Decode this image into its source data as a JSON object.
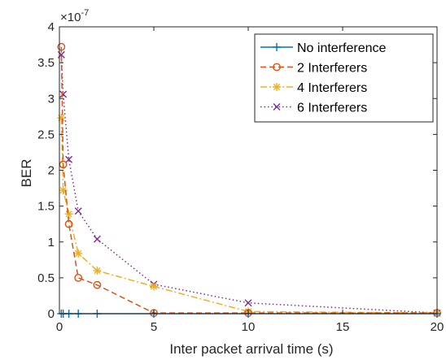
{
  "chart_data": {
    "type": "line",
    "title": "",
    "xlabel": "Inter packet arrival time (s)",
    "ylabel": "BER",
    "y_multiplier": "×10",
    "y_multiplier_exp": "-7",
    "xlim": [
      0,
      20
    ],
    "ylim": [
      0,
      4
    ],
    "y_scale_exponent": -7,
    "x_ticks": [
      0,
      5,
      10,
      15,
      20
    ],
    "x_tick_labels": [
      "0",
      "5",
      "10",
      "15",
      "20"
    ],
    "y_ticks": [
      0,
      0.5,
      1,
      1.5,
      2,
      2.5,
      3,
      3.5,
      4
    ],
    "y_tick_labels": [
      "0",
      "0.5",
      "1",
      "1.5",
      "2",
      "2.5",
      "3",
      "3.5",
      "4"
    ],
    "grid": false,
    "legend_position": "top-right",
    "series": [
      {
        "name": "No interference",
        "color": "#0072BD",
        "line": "solid",
        "marker": "plus",
        "x": [
          0.1,
          0.2,
          0.5,
          1,
          2,
          5,
          10,
          20
        ],
        "y": [
          0,
          0,
          0,
          0,
          0,
          0,
          0,
          0
        ]
      },
      {
        "name": "2 Interferers",
        "color": "#D95319",
        "line": "dashed",
        "marker": "circle",
        "x": [
          0.1,
          0.2,
          0.5,
          1,
          2,
          5,
          10,
          20
        ],
        "y": [
          3.72,
          2.08,
          1.25,
          0.5,
          0.4,
          0.01,
          0.01,
          0.01
        ]
      },
      {
        "name": "4 Interferers",
        "color": "#EDB120",
        "line": "dashdot",
        "marker": "asterisk",
        "x": [
          0.1,
          0.2,
          0.5,
          1,
          2,
          5,
          10,
          20
        ],
        "y": [
          2.73,
          1.72,
          1.39,
          0.84,
          0.6,
          0.38,
          0.03,
          0.01
        ]
      },
      {
        "name": "6 Interferers",
        "color": "#7E2F8E",
        "line": "dotted",
        "marker": "cross",
        "x": [
          0.1,
          0.2,
          0.5,
          1,
          2,
          5,
          10,
          20
        ],
        "y": [
          3.61,
          3.06,
          2.15,
          1.43,
          1.04,
          0.41,
          0.15,
          0.01
        ]
      }
    ]
  }
}
